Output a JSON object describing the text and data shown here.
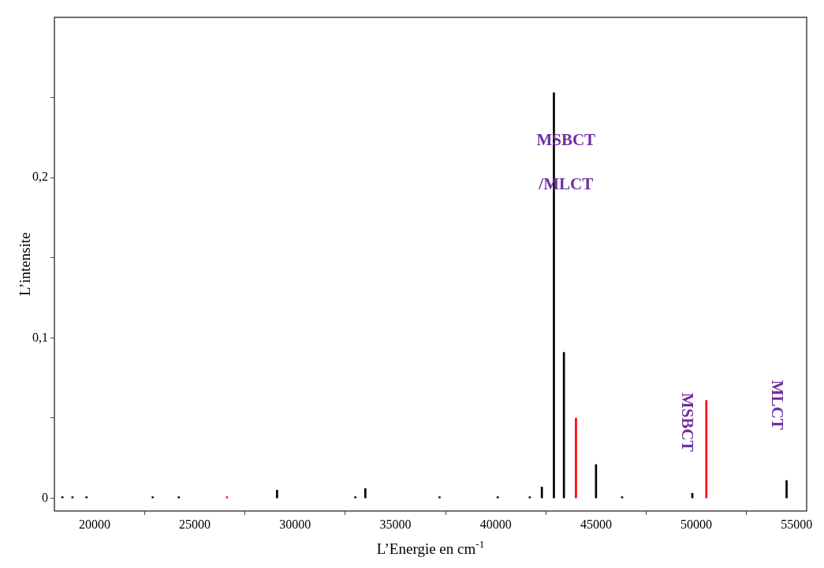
{
  "chart_data": {
    "type": "bar",
    "xlabel": "L’Energie en cm$^{-1}$",
    "ylabel": "L’intensite",
    "series": [
      {
        "color": "#000000",
        "x": [
          18400,
          18900,
          19600,
          22900,
          24200,
          29100,
          33000,
          33500,
          37200,
          40100,
          41700,
          42300,
          42900,
          43400,
          45000,
          46300,
          49800,
          54500
        ],
        "values": [
          0.001,
          0.001,
          0.001,
          0.001,
          0.001,
          0.005,
          0.001,
          0.006,
          0.001,
          0.001,
          0.001,
          0.007,
          0.253,
          0.091,
          0.021,
          0.001,
          0.003,
          0.011
        ]
      },
      {
        "color": "#ff0000",
        "x": [
          26600,
          44000,
          50500
        ],
        "values": [
          0.001,
          0.05,
          0.061
        ]
      }
    ],
    "xlim": [
      18000,
      55500
    ],
    "xticks": [
      20000,
      25000,
      30000,
      35000,
      40000,
      45000,
      50000,
      55000
    ],
    "ylim": [
      -0.008,
      0.3
    ],
    "yticks": [
      {
        "value": 0,
        "label": "0"
      },
      {
        "value": 0.05,
        "label": null
      },
      {
        "value": 0.1,
        "label": "0,1"
      },
      {
        "value": 0.15,
        "label": null
      },
      {
        "value": 0.2,
        "label": "0,2"
      },
      {
        "value": 0.25,
        "label": null
      }
    ],
    "grid": false,
    "legend": false,
    "annotations": [
      "MSBCT",
      "/MLCT",
      "MSBCT",
      "MLCT"
    ]
  }
}
